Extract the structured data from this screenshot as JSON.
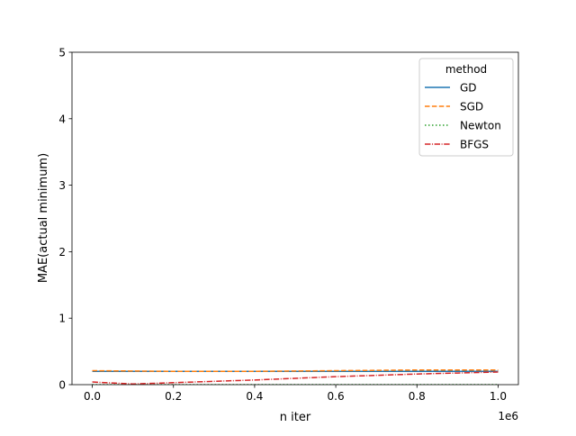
{
  "chart_data": {
    "type": "line",
    "title": "",
    "xlabel": "n iter",
    "ylabel": "MAE(actual minimum)",
    "x_offset_label": "1e6",
    "xlim": [
      -50000,
      1050000
    ],
    "ylim": [
      0,
      5
    ],
    "x_ticks": [
      0,
      200000,
      400000,
      600000,
      800000,
      1000000
    ],
    "x_tick_labels": [
      "0.0",
      "0.2",
      "0.4",
      "0.6",
      "0.8",
      "1.0"
    ],
    "y_ticks": [
      0,
      1,
      2,
      3,
      4,
      5
    ],
    "y_tick_labels": [
      "0",
      "1",
      "2",
      "3",
      "4",
      "5"
    ],
    "grid": false,
    "legend": {
      "title": "method",
      "placement": "top-right"
    },
    "series": [
      {
        "name": "GD",
        "color": "#1f77b4",
        "dash": "solid",
        "x": [
          0,
          200000,
          400000,
          600000,
          800000,
          1000000
        ],
        "y": [
          0.2,
          0.2,
          0.2,
          0.2,
          0.2,
          0.2
        ]
      },
      {
        "name": "SGD",
        "color": "#ff7f0e",
        "dash": "dashed",
        "x": [
          0,
          200000,
          400000,
          600000,
          800000,
          1000000
        ],
        "y": [
          0.21,
          0.2,
          0.2,
          0.21,
          0.22,
          0.22
        ]
      },
      {
        "name": "Newton",
        "color": "#2ca02c",
        "dash": "dotted",
        "x": [
          0,
          200000,
          400000,
          600000,
          800000,
          1000000
        ],
        "y": [
          0,
          0,
          0,
          0,
          0,
          0
        ]
      },
      {
        "name": "BFGS",
        "color": "#d62728",
        "dash": "dashdot",
        "x": [
          0,
          100000,
          200000,
          400000,
          600000,
          800000,
          1000000
        ],
        "y": [
          0.04,
          0.01,
          0.03,
          0.07,
          0.12,
          0.16,
          0.19
        ]
      }
    ]
  }
}
